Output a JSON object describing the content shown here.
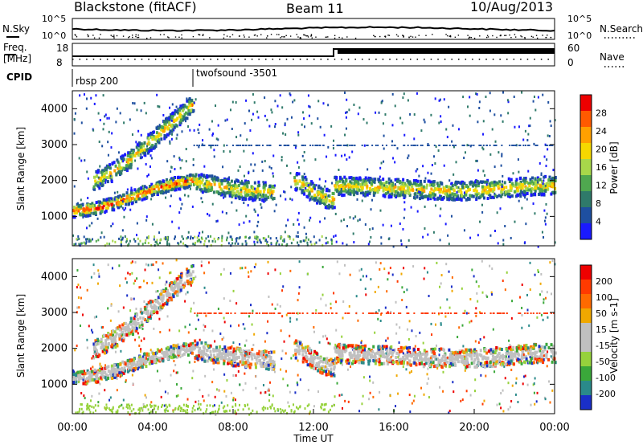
{
  "header": {
    "title": "Blackstone (fitACF)",
    "beam": "Beam 11",
    "date": "10/Aug/2013"
  },
  "side_labels": {
    "nsky": "N.Sky",
    "nsearch": "N.Search",
    "freq_line1": "Freq.",
    "freq_line2": "[MHz]",
    "nave": "Nave",
    "cpid": "CPID"
  },
  "noise_axis": {
    "left_top": "10^5",
    "left_bottom": "10^0",
    "right_top": "10^5",
    "right_bottom": "10^0"
  },
  "freq_axis": {
    "left_ticks": [
      "18",
      "8"
    ],
    "right_ticks": [
      "60",
      "0"
    ]
  },
  "cpid_segments": [
    {
      "label": "rbsp 200",
      "start_hour": 0
    },
    {
      "label": "twofsound -3501",
      "start_hour": 6
    }
  ],
  "colors": {
    "power_scale": [
      "#1a1aff",
      "#1e4fa0",
      "#2f7a6a",
      "#4fa84f",
      "#a8d84a",
      "#f5d800",
      "#ffa000",
      "#ff5a00",
      "#ee0000"
    ],
    "velocity_scale": [
      "#1a2fc8",
      "#2a8a8a",
      "#3aa83a",
      "#96d23c",
      "#c0c0c0",
      "#c0c0c0",
      "#f0a800",
      "#ff6a00",
      "#ff3a00",
      "#ee0000"
    ]
  },
  "chart_data": [
    {
      "type": "heatmap",
      "panel": "power",
      "ylabel": "Slant Range [km]",
      "ylim": [
        180,
        4500
      ],
      "yticks": [
        1000,
        2000,
        3000,
        4000
      ],
      "xlim": [
        0,
        24
      ],
      "colorbar_label": "Power [dB]",
      "colorbar_ticks": [
        4,
        8,
        12,
        16,
        20,
        24,
        28
      ],
      "colorbar_range": [
        0,
        30
      ],
      "echo_bands": [
        {
          "name": "main",
          "points": [
            [
              0,
              1200
            ],
            [
              1,
              1250
            ],
            [
              2,
              1400
            ],
            [
              3,
              1600
            ],
            [
              4,
              1800
            ],
            [
              5,
              1950
            ],
            [
              6,
              2050
            ]
          ]
        },
        {
          "name": "upper",
          "points": [
            [
              1,
              2000
            ],
            [
              2,
              2300
            ],
            [
              3,
              2700
            ],
            [
              4,
              3200
            ],
            [
              5,
              3700
            ],
            [
              6,
              4200
            ]
          ]
        },
        {
          "name": "mid-day",
          "points": [
            [
              6,
              2000
            ],
            [
              7,
              1900
            ],
            [
              8,
              1800
            ],
            [
              9,
              1750
            ],
            [
              10,
              1700
            ]
          ]
        },
        {
          "name": "afternoon",
          "points": [
            [
              11,
              2050
            ],
            [
              11.5,
              1900
            ],
            [
              12,
              1700
            ],
            [
              12.5,
              1550
            ],
            [
              13,
              1500
            ]
          ]
        },
        {
          "name": "evening",
          "points": [
            [
              13,
              1900
            ],
            [
              15,
              1850
            ],
            [
              17,
              1800
            ],
            [
              19,
              1750
            ],
            [
              21,
              1800
            ],
            [
              23,
              1900
            ],
            [
              24,
              1900
            ]
          ]
        }
      ]
    },
    {
      "type": "heatmap",
      "panel": "velocity",
      "ylabel": "Slant Range [km]",
      "ylim": [
        180,
        4500
      ],
      "yticks": [
        1000,
        2000,
        3000,
        4000
      ],
      "xlim": [
        0,
        24
      ],
      "xticks": [
        "00:00",
        "04:00",
        "08:00",
        "12:00",
        "16:00",
        "20:00",
        "00:00"
      ],
      "xlabel": "Time UT",
      "colorbar_label": "Velocity [m s-1]",
      "colorbar_ticks": [
        200,
        100,
        50,
        15,
        -15,
        -50,
        -100,
        -200
      ]
    }
  ]
}
